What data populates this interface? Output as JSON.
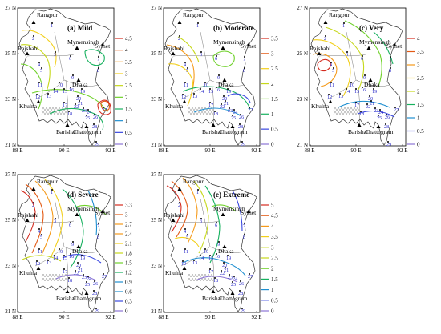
{
  "map": {
    "cities": [
      "Rangpur",
      "Rajshahi",
      "Mymensingh",
      "Sylhet",
      "Dhaka",
      "Khulna",
      "Barishal",
      "Chattogram"
    ],
    "y_ticks": [
      "27 N",
      "25 N",
      "23 N",
      "21 N"
    ],
    "x_ticks": [
      "88 E",
      "90 E",
      "92 E"
    ],
    "stations": [
      "1",
      "2",
      "3",
      "4",
      "5",
      "6",
      "7",
      "8",
      "9",
      "10",
      "11",
      "12",
      "13",
      "14",
      "15",
      "16",
      "17",
      "18",
      "19",
      "20",
      "21",
      "22",
      "23",
      "24",
      "25",
      "26",
      "27",
      "28",
      "29"
    ],
    "colors": {
      "scale": [
        "#8d76d6",
        "#3a48e0",
        "#1f8fd0",
        "#17b15f",
        "#6fd12a",
        "#c6d81b",
        "#f2cf1b",
        "#f59a1a",
        "#e35a14",
        "#d42a1e"
      ],
      "border": "#333333",
      "station_label": "#2a2ac8"
    },
    "icons": [
      "city-triangle-icon",
      "station-dot-icon",
      "mangrove-shading-icon"
    ]
  },
  "panels": [
    {
      "id": "mild",
      "title": "(a) Mild",
      "legend": [
        "4.5",
        "4",
        "3.5",
        "3",
        "2.5",
        "2",
        "1.5",
        "1",
        "0.5",
        "0"
      ]
    },
    {
      "id": "moderate",
      "title": "(b) Moderate",
      "legend": [
        "3.5",
        "3",
        "2.5",
        "2",
        "1.5",
        "1",
        "0.5",
        "0"
      ]
    },
    {
      "id": "very",
      "title": "(c) Very",
      "legend": [
        "4",
        "3.5",
        "3",
        "2.5",
        "2",
        "1.5",
        "1",
        "0.5",
        "0"
      ]
    },
    {
      "id": "severe",
      "title": "(d) Severe",
      "legend": [
        "3.3",
        "3",
        "2.7",
        "2.4",
        "2.1",
        "1.8",
        "1.5",
        "1.2",
        "0.9",
        "0.6",
        "0.3",
        "0"
      ]
    },
    {
      "id": "extreme",
      "title": "(e) Extreme",
      "legend": [
        "5",
        "4.5",
        "4",
        "3.5",
        "3",
        "2.5",
        "2",
        "1.5",
        "1",
        "0.5",
        "0"
      ]
    }
  ]
}
